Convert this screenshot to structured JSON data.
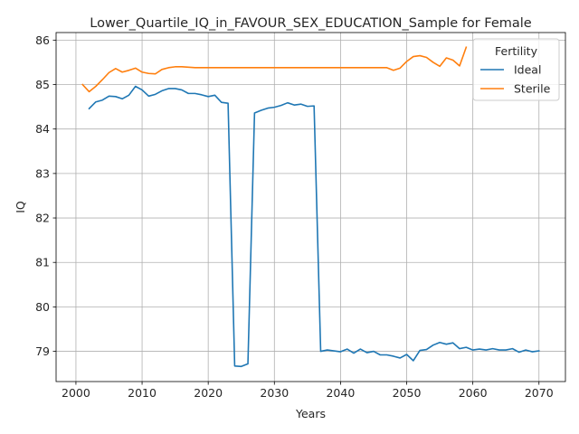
{
  "chart_data": {
    "type": "line",
    "title": "Lower_Quartile_IQ_in_FAVOUR_SEX_EDUCATION_Sample for Female",
    "xlabel": "Years",
    "ylabel": "IQ",
    "xlim": [
      1997,
      2074
    ],
    "ylim": [
      78.32,
      86.17
    ],
    "xticks": [
      2000,
      2010,
      2020,
      2030,
      2040,
      2050,
      2060,
      2070
    ],
    "yticks": [
      79,
      80,
      81,
      82,
      83,
      84,
      85,
      86
    ],
    "grid": true,
    "legend": {
      "title": "Fertility",
      "placement": "top-right"
    },
    "series": [
      {
        "name": "Ideal",
        "color": "#1f77b4",
        "x": [
          2002,
          2003,
          2004,
          2005,
          2006,
          2007,
          2008,
          2009,
          2010,
          2011,
          2012,
          2013,
          2014,
          2015,
          2016,
          2017,
          2018,
          2019,
          2020,
          2021,
          2022,
          2023,
          2024,
          2025,
          2026,
          2027,
          2028,
          2029,
          2030,
          2031,
          2032,
          2033,
          2034,
          2035,
          2036,
          2037,
          2038,
          2039,
          2040,
          2041,
          2042,
          2043,
          2044,
          2045,
          2046,
          2047,
          2048,
          2049,
          2050,
          2051,
          2052,
          2053,
          2054,
          2055,
          2056,
          2057,
          2058,
          2059,
          2060,
          2061,
          2062,
          2063,
          2064,
          2065,
          2066,
          2067,
          2068,
          2069,
          2070
        ],
        "values": [
          84.46,
          84.61,
          84.65,
          84.74,
          84.73,
          84.68,
          84.76,
          84.96,
          84.88,
          84.74,
          84.78,
          84.86,
          84.91,
          84.91,
          84.88,
          84.8,
          84.8,
          84.77,
          84.73,
          84.76,
          84.6,
          84.58,
          78.67,
          78.66,
          78.72,
          84.36,
          84.42,
          84.47,
          84.49,
          84.53,
          84.59,
          84.54,
          84.56,
          84.51,
          84.52,
          79.0,
          79.03,
          79.01,
          78.99,
          79.05,
          78.96,
          79.05,
          78.97,
          79.0,
          78.92,
          78.92,
          78.89,
          78.85,
          78.93,
          78.79,
          79.02,
          79.04,
          79.14,
          79.2,
          79.16,
          79.19,
          79.06,
          79.09,
          79.03,
          79.05,
          79.03,
          79.06,
          79.03,
          79.03,
          79.06,
          78.98,
          79.03,
          78.99,
          79.01
        ]
      },
      {
        "name": "Sterile",
        "color": "#ff7f0e",
        "x": [
          2001,
          2002,
          2003,
          2004,
          2005,
          2006,
          2007,
          2008,
          2009,
          2010,
          2011,
          2012,
          2013,
          2014,
          2015,
          2016,
          2017,
          2018,
          2019,
          2020,
          2021,
          2022,
          2023,
          2024,
          2025,
          2026,
          2027,
          2028,
          2029,
          2030,
          2031,
          2032,
          2033,
          2034,
          2035,
          2036,
          2037,
          2038,
          2039,
          2040,
          2041,
          2042,
          2043,
          2044,
          2045,
          2046,
          2047,
          2048,
          2049,
          2050,
          2051,
          2052,
          2053,
          2054,
          2055,
          2056,
          2057,
          2058,
          2059
        ],
        "values": [
          85.0,
          84.84,
          84.96,
          85.11,
          85.27,
          85.36,
          85.28,
          85.32,
          85.37,
          85.28,
          85.25,
          85.24,
          85.34,
          85.38,
          85.4,
          85.4,
          85.39,
          85.38,
          85.38,
          85.38,
          85.38,
          85.38,
          85.38,
          85.38,
          85.38,
          85.38,
          85.38,
          85.38,
          85.38,
          85.38,
          85.38,
          85.38,
          85.38,
          85.38,
          85.38,
          85.38,
          85.38,
          85.38,
          85.38,
          85.38,
          85.38,
          85.38,
          85.38,
          85.38,
          85.38,
          85.38,
          85.38,
          85.32,
          85.37,
          85.52,
          85.63,
          85.65,
          85.61,
          85.5,
          85.41,
          85.6,
          85.55,
          85.42,
          85.84
        ]
      }
    ]
  }
}
